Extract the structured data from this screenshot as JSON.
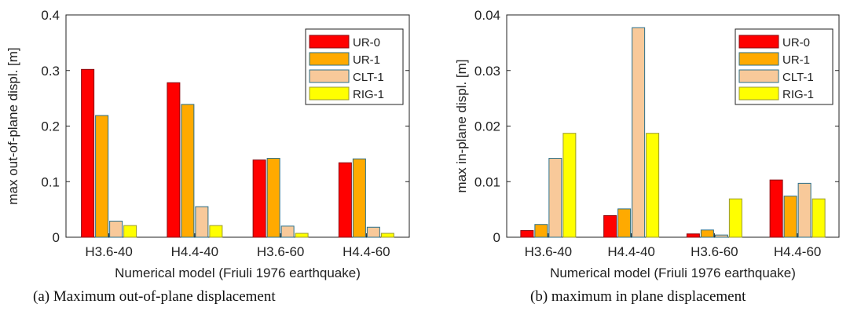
{
  "colors": {
    "UR-0": {
      "fill": "#ff0000",
      "stroke": "#8a0a10"
    },
    "UR-1": {
      "fill": "#ffaa00",
      "stroke": "#2a6f8a"
    },
    "CLT-1": {
      "fill": "#f8c99a",
      "stroke": "#2a6f8a"
    },
    "RIG-1": {
      "fill": "#ffff00",
      "stroke": "#9a9a30"
    }
  },
  "chart_data": [
    {
      "type": "bar",
      "caption": "(a) Maximum out-of-plane displacement",
      "xlabel": "Numerical model (Friuli 1976 earthquake)",
      "ylabel": "max out-of-plane displ. [m]",
      "ylim": [
        0,
        0.4
      ],
      "yticks": [
        "0",
        "0.1",
        "0.2",
        "0.3",
        "0.4"
      ],
      "grid": false,
      "legend_position": "top-right",
      "categories": [
        "H3.6-40",
        "H4.4-40",
        "H3.6-60",
        "H4.4-60"
      ],
      "series": [
        {
          "name": "UR-0",
          "values": [
            0.302,
            0.278,
            0.139,
            0.134
          ]
        },
        {
          "name": "UR-1",
          "values": [
            0.219,
            0.239,
            0.142,
            0.141
          ]
        },
        {
          "name": "CLT-1",
          "values": [
            0.029,
            0.055,
            0.02,
            0.018
          ]
        },
        {
          "name": "RIG-1",
          "values": [
            0.021,
            0.021,
            0.007,
            0.007
          ]
        }
      ]
    },
    {
      "type": "bar",
      "caption": "(b) maximum in plane displacement",
      "xlabel": "Numerical model (Friuli 1976 earthquake)",
      "ylabel": "max in-plane displ. [m]",
      "ylim": [
        0,
        0.04
      ],
      "yticks": [
        "0",
        "0.01",
        "0.02",
        "0.03",
        "0.04"
      ],
      "grid": false,
      "legend_position": "top-right",
      "categories": [
        "H3.6-40",
        "H4.4-40",
        "H3.6-60",
        "H4.4-60"
      ],
      "series": [
        {
          "name": "UR-0",
          "values": [
            0.0012,
            0.0039,
            0.0006,
            0.0103
          ]
        },
        {
          "name": "UR-1",
          "values": [
            0.0023,
            0.0051,
            0.0013,
            0.0074
          ]
        },
        {
          "name": "CLT-1",
          "values": [
            0.0142,
            0.0377,
            0.0004,
            0.0097
          ]
        },
        {
          "name": "RIG-1",
          "values": [
            0.0187,
            0.0187,
            0.0069,
            0.0069
          ]
        }
      ]
    }
  ]
}
